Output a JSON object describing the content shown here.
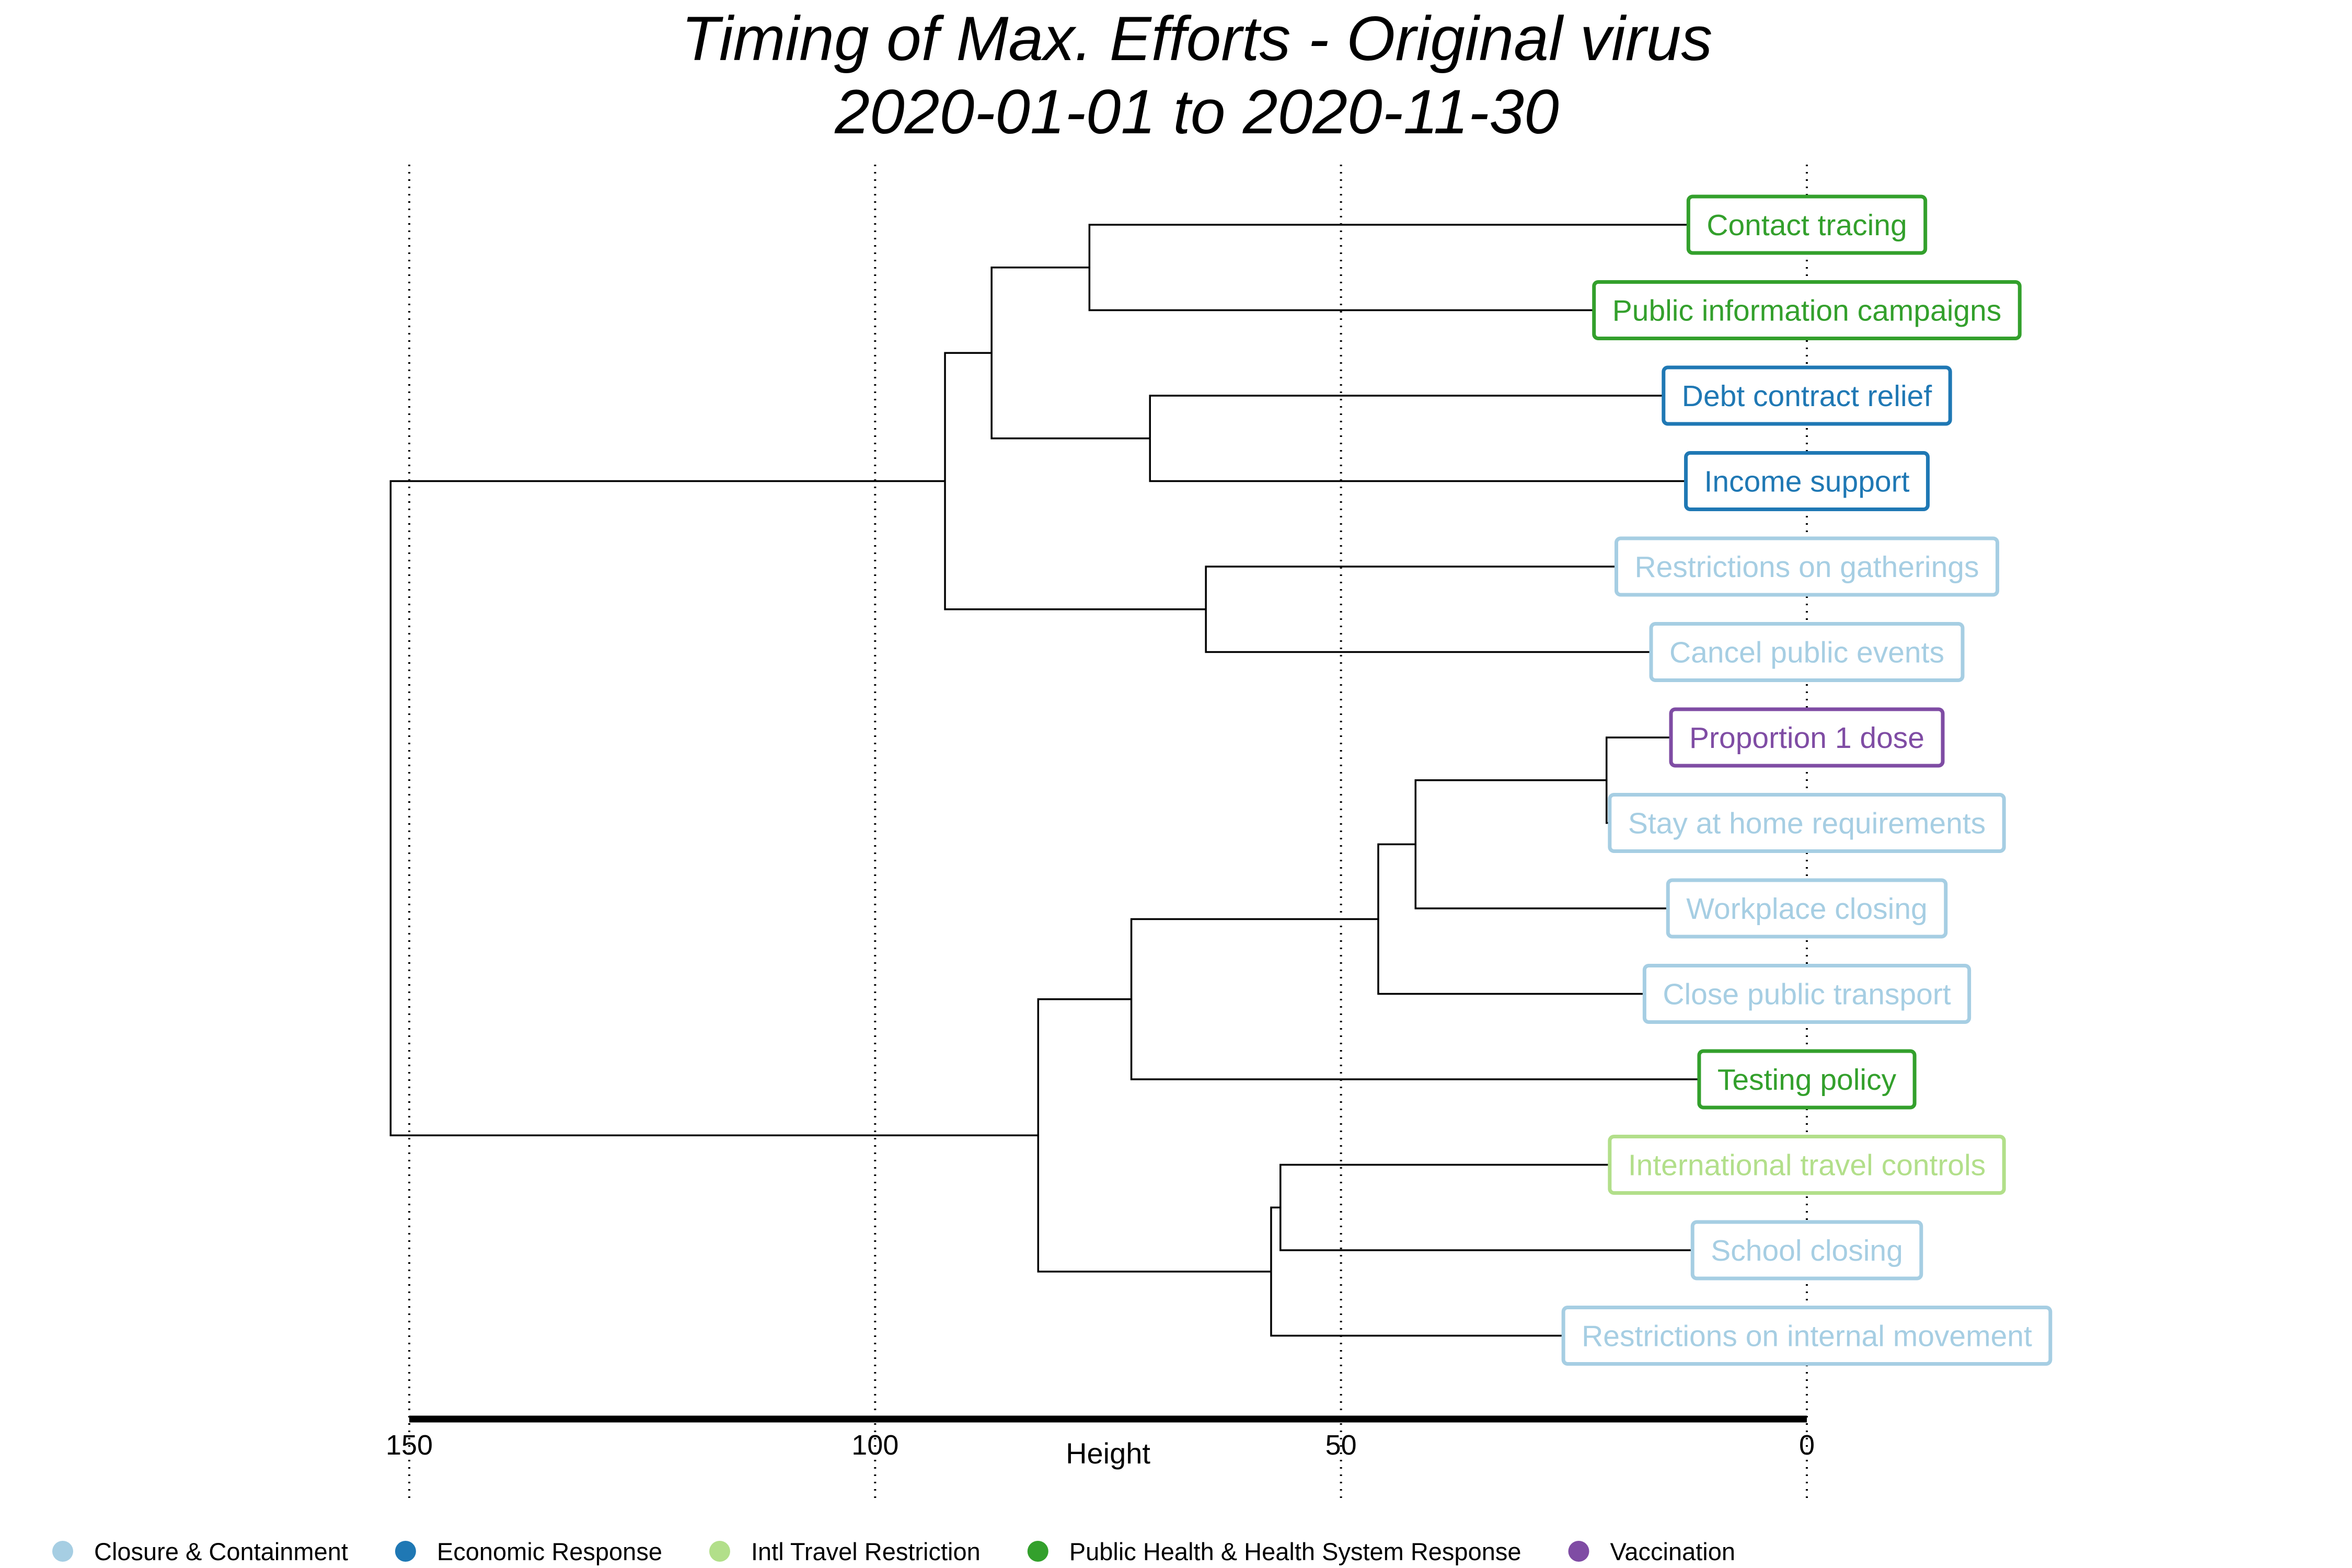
{
  "chart_data": {
    "type": "dendrogram",
    "title": "Timing of Max. Efforts - Original virus",
    "subtitle": "2020-01-01 to 2020-11-30",
    "xlabel": "Height",
    "xlim": [
      150,
      0
    ],
    "xticks": [
      150,
      100,
      50,
      0
    ],
    "grid": true,
    "legend_position": "bottom",
    "categories": [
      {
        "key": "closure",
        "label": "Closure & Containment",
        "color": "#a6cee3"
      },
      {
        "key": "economic",
        "label": "Economic Response",
        "color": "#1f78b4"
      },
      {
        "key": "travel",
        "label": "Intl Travel Restriction",
        "color": "#b2df8a"
      },
      {
        "key": "health",
        "label": "Public Health & Health System Response",
        "color": "#33a02c"
      },
      {
        "key": "vaccination",
        "label": "Vaccination",
        "color": "#7f4ca4"
      }
    ],
    "leaves": [
      {
        "label": "Contact tracing",
        "category": "health"
      },
      {
        "label": "Public information campaigns",
        "category": "health"
      },
      {
        "label": "Debt contract relief",
        "category": "economic"
      },
      {
        "label": "Income support",
        "category": "economic"
      },
      {
        "label": "Restrictions on gatherings",
        "category": "closure"
      },
      {
        "label": "Cancel public events",
        "category": "closure"
      },
      {
        "label": "Proportion 1 dose",
        "category": "vaccination"
      },
      {
        "label": "Stay at home requirements",
        "category": "closure"
      },
      {
        "label": "Workplace closing",
        "category": "closure"
      },
      {
        "label": "Close public transport",
        "category": "closure"
      },
      {
        "label": "Testing policy",
        "category": "health"
      },
      {
        "label": "International travel controls",
        "category": "travel"
      },
      {
        "label": "School closing",
        "category": "closure"
      },
      {
        "label": "Restrictions on internal movement",
        "category": "closure"
      }
    ],
    "merges": [
      {
        "a": "L0",
        "b": "L1",
        "height": 77
      },
      {
        "a": "L2",
        "b": "L3",
        "height": 70.5
      },
      {
        "a": "M0",
        "b": "M1",
        "height": 87.5
      },
      {
        "a": "L4",
        "b": "L5",
        "height": 64.5
      },
      {
        "a": "M2",
        "b": "M3",
        "height": 92.5
      },
      {
        "a": "L6",
        "b": "L7",
        "height": 21.5
      },
      {
        "a": "M5",
        "b": "L8",
        "height": 42
      },
      {
        "a": "M6",
        "b": "L9",
        "height": 46
      },
      {
        "a": "M7",
        "b": "L10",
        "height": 72.5
      },
      {
        "a": "L11",
        "b": "L12",
        "height": 56.5
      },
      {
        "a": "M9",
        "b": "L13",
        "height": 57.5
      },
      {
        "a": "M8",
        "b": "M10",
        "height": 82.5
      },
      {
        "a": "M4",
        "b": "M11",
        "height": 152
      }
    ]
  }
}
